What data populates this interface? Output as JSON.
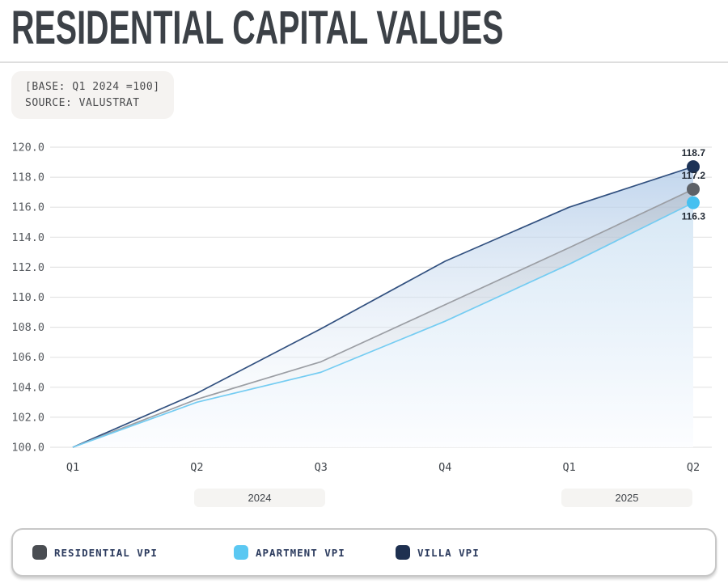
{
  "header": {
    "title": "RESIDENTIAL CAPITAL VALUES"
  },
  "note": {
    "line1": "[BASE: Q1 2024 =100]",
    "line2": "SOURCE: VALUSTRAT"
  },
  "chart_data": {
    "type": "area",
    "title": "RESIDENTIAL CAPITAL VALUES",
    "base_note": "[BASE: Q1 2024 =100]",
    "source": "VALUSTRAT",
    "x_labels": [
      "Q1",
      "Q2",
      "Q3",
      "Q4",
      "Q1",
      "Q2"
    ],
    "year_groups": [
      {
        "label": "2024"
      },
      {
        "label": "2025"
      }
    ],
    "ylim": [
      100,
      120
    ],
    "ytick_step": 2,
    "ytick_labels": [
      "100.0",
      "102.0",
      "104.0",
      "106.0",
      "108.0",
      "110.0",
      "112.0",
      "114.0",
      "116.0",
      "118.0",
      "120.0"
    ],
    "grid": "horizontal",
    "legend_position": "bottom",
    "series": [
      {
        "name": "RESIDENTIAL VPI",
        "values": [
          100.0,
          103.2,
          105.7,
          109.5,
          113.3,
          117.2
        ],
        "end_label": "117.2",
        "line_color": "#9b9ea4",
        "dot_color": "#5e6268",
        "fill_from": "rgba(140,150,162,0.42)",
        "fill_to": "rgba(255,255,255,0.15)"
      },
      {
        "name": "APARTMENT VPI",
        "values": [
          100.0,
          103.0,
          105.0,
          108.4,
          112.2,
          116.3
        ],
        "end_label": "116.3",
        "line_color": "#74ccf2",
        "dot_color": "#45c0f0",
        "fill_from": "rgba(208,228,244,0.97)",
        "fill_to": "rgba(252,253,255,0.98)"
      },
      {
        "name": "VILLA VPI",
        "values": [
          100.0,
          103.6,
          107.9,
          112.4,
          116.0,
          118.7
        ],
        "end_label": "118.7",
        "line_color": "#31507f",
        "dot_color": "#1d3357",
        "fill_from": "rgba(167,196,229,0.78)",
        "fill_to": "rgba(255,255,255,0.25)"
      }
    ],
    "axis_colors": {
      "ytick": "#565a5f",
      "xtick": "#3f444a",
      "grid": "#e4e4e4",
      "end_label": "#232b36"
    }
  },
  "legend": {
    "items": [
      {
        "label": "RESIDENTIAL VPI",
        "color": "#4a4d52"
      },
      {
        "label": "APARTMENT VPI",
        "color": "#5bc8f2"
      },
      {
        "label": "VILLA VPI",
        "color": "#1e3050"
      }
    ]
  }
}
